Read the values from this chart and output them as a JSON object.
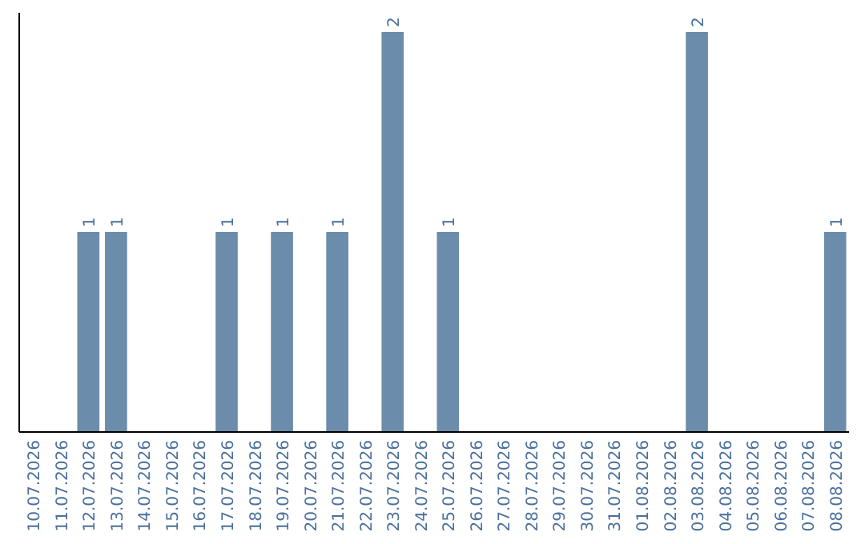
{
  "chart_data": {
    "type": "bar",
    "categories": [
      "10.07.2026",
      "11.07.2026",
      "12.07.2026",
      "13.07.2026",
      "14.07.2026",
      "15.07.2026",
      "16.07.2026",
      "17.07.2026",
      "18.07.2026",
      "19.07.2026",
      "20.07.2026",
      "21.07.2026",
      "22.07.2026",
      "23.07.2026",
      "24.07.2026",
      "25.07.2026",
      "26.07.2026",
      "27.07.2026",
      "28.07.2026",
      "29.07.2026",
      "30.07.2026",
      "31.07.2026",
      "01.08.2026",
      "02.08.2026",
      "03.08.2026",
      "04.08.2026",
      "05.08.2026",
      "06.08.2026",
      "07.08.2026",
      "08.08.2026"
    ],
    "values": [
      0,
      0,
      1,
      1,
      0,
      0,
      0,
      1,
      0,
      1,
      0,
      1,
      0,
      2,
      0,
      1,
      0,
      0,
      0,
      0,
      0,
      0,
      0,
      0,
      2,
      0,
      0,
      0,
      0,
      1
    ],
    "value_labels": [
      null,
      null,
      "1",
      "1",
      null,
      null,
      null,
      "1",
      null,
      "1",
      null,
      "1",
      null,
      "2",
      null,
      "1",
      null,
      null,
      null,
      null,
      null,
      null,
      null,
      null,
      "2",
      null,
      null,
      null,
      null,
      "1"
    ],
    "color": "#6b8caa",
    "tick_labels": "x"
  }
}
